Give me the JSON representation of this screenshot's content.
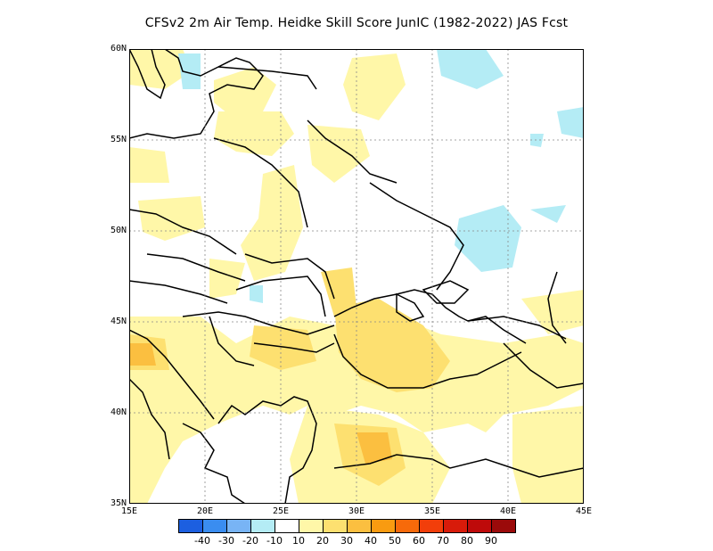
{
  "title": "CFSv2  2m Air Temp. Heidke Skill Score JunIC (1982-2022) JAS Fcst",
  "axes": {
    "y_ticks": [
      "60N",
      "55N",
      "50N",
      "45N",
      "40N",
      "35N"
    ],
    "x_ticks": [
      "15E",
      "20E",
      "25E",
      "30E",
      "35E",
      "40E",
      "45E"
    ],
    "lon_range": [
      15,
      45
    ],
    "lat_range": [
      35,
      60
    ],
    "grid": "dotted"
  },
  "colorbar": {
    "colors": [
      "#1c5fe0",
      "#3a8df0",
      "#78b4f5",
      "#b4ecf5",
      "#ffffff",
      "#fff7a8",
      "#fde070",
      "#fbbf40",
      "#f99b10",
      "#f76a0a",
      "#f23e0a",
      "#d81b0a",
      "#be0a0a",
      "#9b0a0a"
    ],
    "labels": [
      "-40",
      "-30",
      "-20",
      "-10",
      "10",
      "20",
      "30",
      "40",
      "50",
      "60",
      "70",
      "80",
      "90"
    ]
  },
  "fill_colors": {
    "light_yellow": "#fff7a8",
    "yellow": "#fde070",
    "orange": "#fbbf40",
    "light_blue": "#b4ecf5"
  }
}
